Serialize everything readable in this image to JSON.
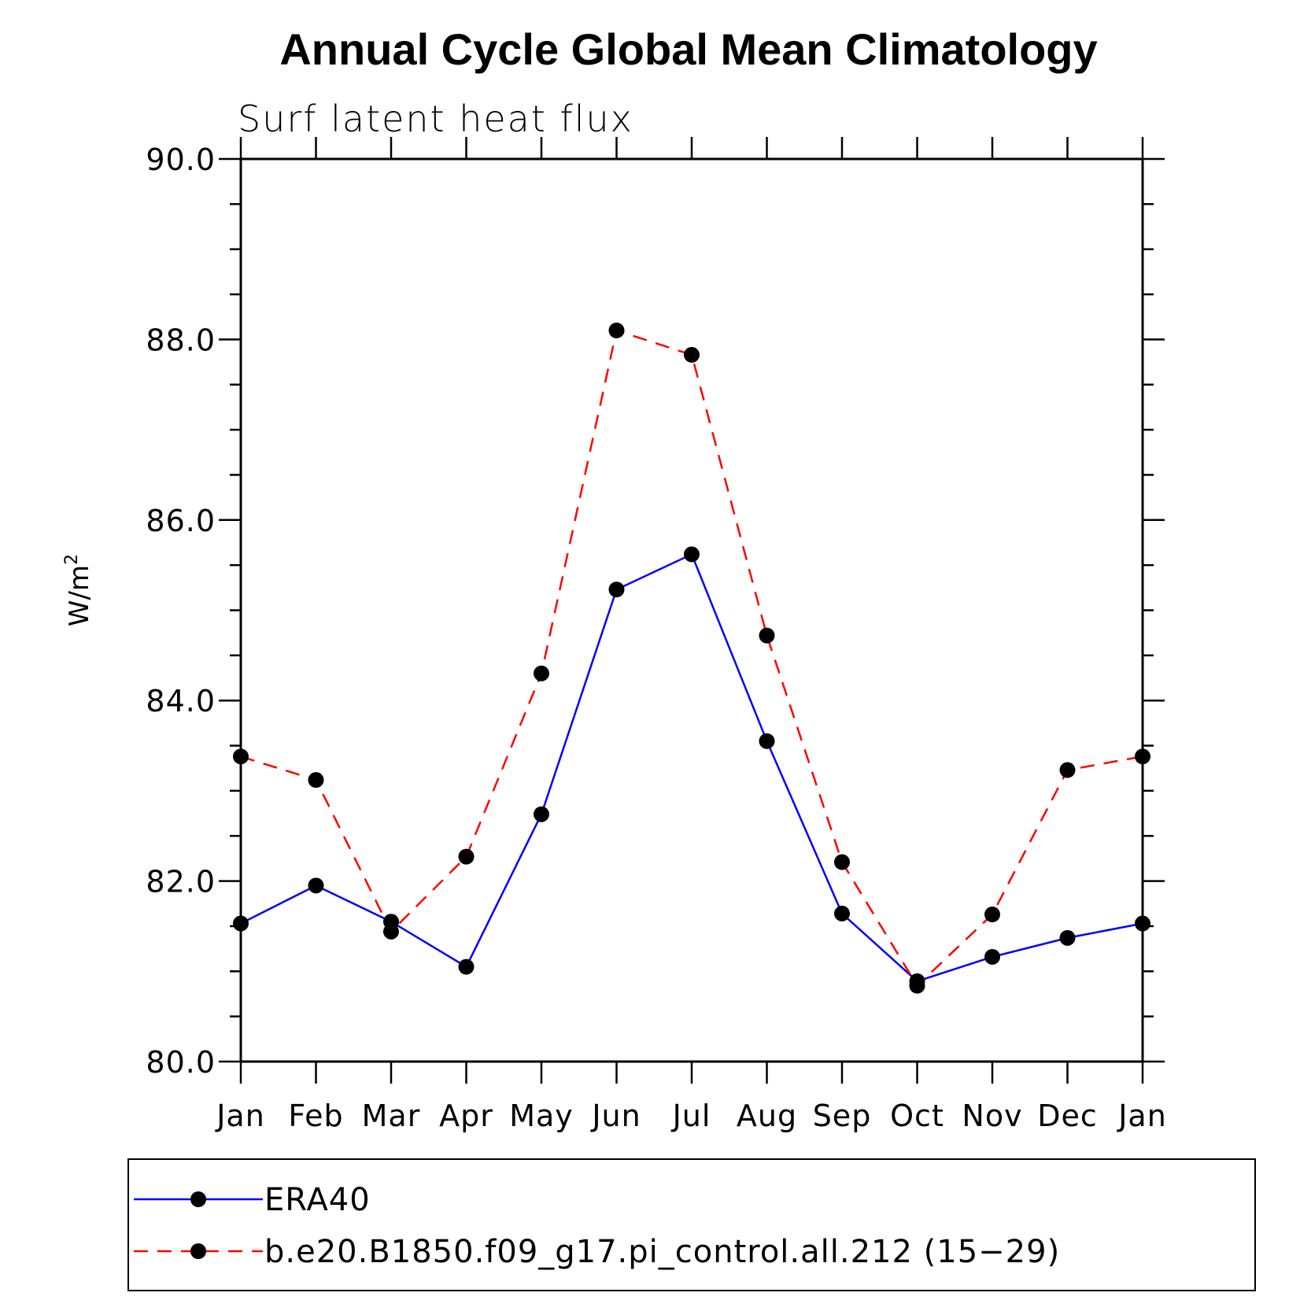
{
  "chart_data": {
    "type": "line",
    "title": "Annual Cycle Global Mean Climatology",
    "subtitle": "Surf latent heat flux",
    "ylabel": "W/m",
    "ylabel_superscript": "2",
    "xlabel": "",
    "categories": [
      "Jan",
      "Feb",
      "Mar",
      "Apr",
      "May",
      "Jun",
      "Jul",
      "Aug",
      "Sep",
      "Oct",
      "Nov",
      "Dec",
      "Jan"
    ],
    "ylim": [
      80.0,
      90.0
    ],
    "yticks": [
      "80.0",
      "82.0",
      "84.0",
      "86.0",
      "88.0",
      "90.0"
    ],
    "ytick_values": [
      80,
      82,
      84,
      86,
      88,
      90
    ],
    "yminor_step": 0.5,
    "series": [
      {
        "name": "ERA40",
        "color": "#0000ff",
        "dash": "solid",
        "marker": "filled-circle",
        "values": [
          81.53,
          81.95,
          81.55,
          81.05,
          82.74,
          85.23,
          85.62,
          83.55,
          81.64,
          80.89,
          81.16,
          81.37,
          81.53
        ]
      },
      {
        "name": "b.e20.B1850.f09_g17.pi_control.all.212 (15−29)",
        "color": "#ff0000",
        "dash": "dashed",
        "marker": "filled-circle",
        "values": [
          83.38,
          83.12,
          81.44,
          82.27,
          84.3,
          88.1,
          87.83,
          84.72,
          82.21,
          80.84,
          81.63,
          83.23,
          83.38
        ]
      }
    ],
    "legend": {
      "position": "bottom",
      "entries": [
        "ERA40",
        "b.e20.B1850.f09_g17.pi_control.all.212 (15−29)"
      ]
    },
    "grid": false
  }
}
